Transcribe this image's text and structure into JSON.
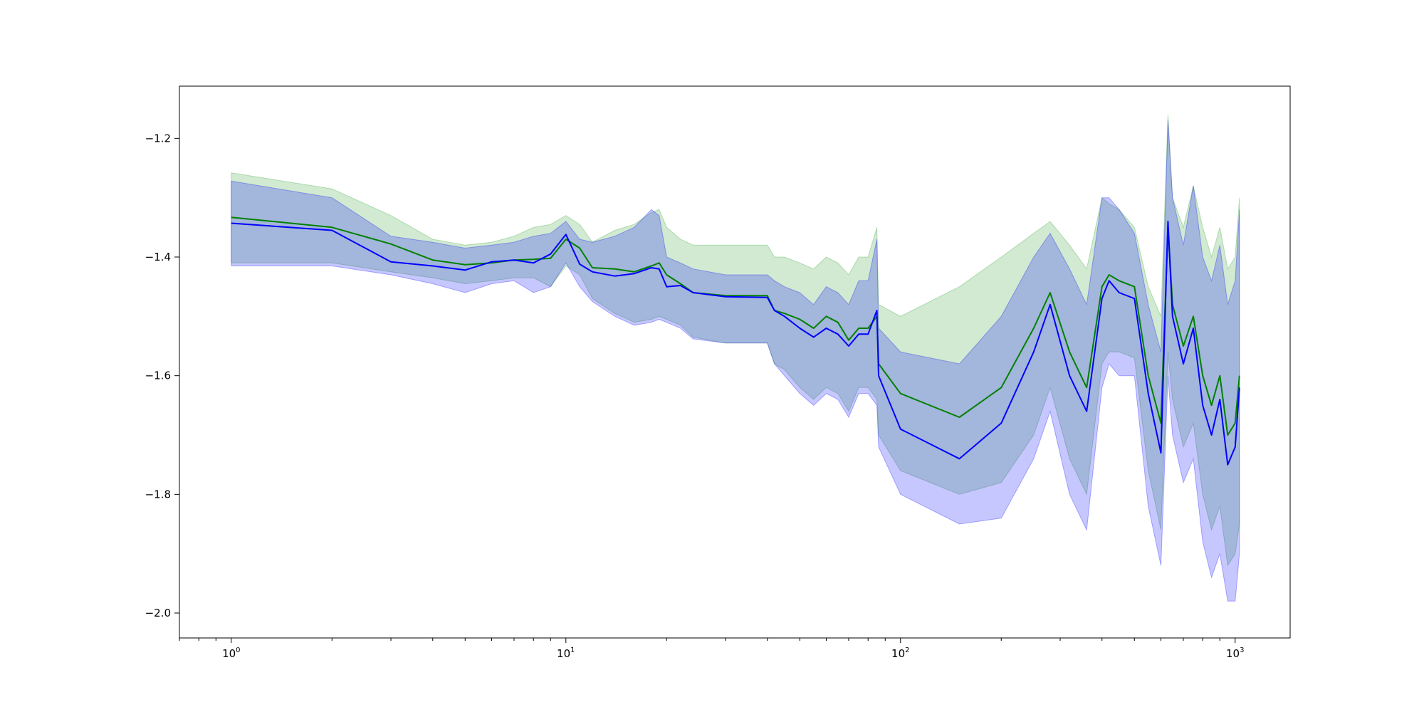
{
  "chart_data": {
    "type": "line",
    "title": "",
    "xlabel": "",
    "ylabel": "",
    "xscale": "log",
    "xlim": [
      0.7,
      1460
    ],
    "ylim": [
      -2.042,
      -1.112
    ],
    "grid": false,
    "legend": "none",
    "x_ticks": [
      {
        "value": 1,
        "base": "10",
        "exp": "0"
      },
      {
        "value": 10,
        "base": "10",
        "exp": "1"
      },
      {
        "value": 100,
        "base": "10",
        "exp": "2"
      },
      {
        "value": 1000,
        "base": "10",
        "exp": "3"
      }
    ],
    "y_ticks": [
      {
        "value": -1.2,
        "label": "−1.2"
      },
      {
        "value": -1.4,
        "label": "−1.4"
      },
      {
        "value": -1.6,
        "label": "−1.6"
      },
      {
        "value": -1.8,
        "label": "−1.8"
      },
      {
        "value": -2.0,
        "label": "−2.0"
      }
    ],
    "series": [
      {
        "color": "#008000",
        "band_color": "#2ca02c",
        "x": [
          1,
          2,
          3,
          4,
          5,
          6,
          7,
          8,
          9,
          10,
          11,
          12,
          14,
          16,
          18,
          19,
          20,
          22,
          24,
          30,
          40,
          42,
          45,
          50,
          55,
          60,
          65,
          70,
          75,
          80,
          85,
          86,
          100,
          150,
          200,
          250,
          280,
          320,
          360,
          400,
          420,
          450,
          500,
          550,
          600,
          630,
          650,
          700,
          750,
          800,
          850,
          900,
          950,
          1000,
          1030
        ],
        "y": [
          -1.333,
          -1.35,
          -1.378,
          -1.405,
          -1.413,
          -1.41,
          -1.405,
          -1.404,
          -1.402,
          -1.37,
          -1.385,
          -1.418,
          -1.42,
          -1.425,
          -1.415,
          -1.41,
          -1.43,
          -1.445,
          -1.46,
          -1.465,
          -1.465,
          -1.49,
          -1.495,
          -1.505,
          -1.52,
          -1.5,
          -1.51,
          -1.54,
          -1.52,
          -1.52,
          -1.5,
          -1.58,
          -1.63,
          -1.67,
          -1.62,
          -1.52,
          -1.46,
          -1.56,
          -1.62,
          -1.45,
          -1.43,
          -1.44,
          -1.45,
          -1.6,
          -1.68,
          -1.35,
          -1.48,
          -1.55,
          -1.5,
          -1.6,
          -1.65,
          -1.6,
          -1.7,
          -1.68,
          -1.6
        ],
        "upper": [
          -1.258,
          -1.285,
          -1.33,
          -1.37,
          -1.38,
          -1.375,
          -1.365,
          -1.35,
          -1.345,
          -1.33,
          -1.345,
          -1.375,
          -1.355,
          -1.345,
          -1.325,
          -1.32,
          -1.35,
          -1.37,
          -1.38,
          -1.38,
          -1.38,
          -1.4,
          -1.4,
          -1.41,
          -1.42,
          -1.4,
          -1.41,
          -1.43,
          -1.4,
          -1.4,
          -1.35,
          -1.48,
          -1.5,
          -1.45,
          -1.4,
          -1.36,
          -1.34,
          -1.38,
          -1.42,
          -1.3,
          -1.31,
          -1.32,
          -1.35,
          -1.45,
          -1.5,
          -1.16,
          -1.3,
          -1.35,
          -1.28,
          -1.35,
          -1.4,
          -1.35,
          -1.42,
          -1.4,
          -1.3
        ],
        "lower": [
          -1.41,
          -1.41,
          -1.425,
          -1.435,
          -1.445,
          -1.44,
          -1.435,
          -1.435,
          -1.45,
          -1.415,
          -1.43,
          -1.47,
          -1.495,
          -1.51,
          -1.505,
          -1.5,
          -1.505,
          -1.515,
          -1.535,
          -1.545,
          -1.545,
          -1.58,
          -1.59,
          -1.62,
          -1.64,
          -1.62,
          -1.63,
          -1.66,
          -1.62,
          -1.62,
          -1.64,
          -1.7,
          -1.76,
          -1.8,
          -1.78,
          -1.7,
          -1.62,
          -1.74,
          -1.8,
          -1.58,
          -1.56,
          -1.56,
          -1.57,
          -1.76,
          -1.86,
          -1.56,
          -1.64,
          -1.72,
          -1.68,
          -1.8,
          -1.86,
          -1.82,
          -1.92,
          -1.9,
          -1.85
        ]
      },
      {
        "color": "#0000ff",
        "band_color": "#0000ff",
        "x": [
          1,
          2,
          3,
          4,
          5,
          6,
          7,
          8,
          9,
          10,
          11,
          12,
          14,
          16,
          18,
          19,
          20,
          22,
          24,
          30,
          40,
          42,
          45,
          50,
          55,
          60,
          65,
          70,
          75,
          80,
          85,
          86,
          100,
          150,
          200,
          250,
          280,
          320,
          360,
          400,
          420,
          450,
          500,
          550,
          600,
          630,
          650,
          700,
          750,
          800,
          850,
          900,
          950,
          1000,
          1030
        ],
        "y": [
          -1.343,
          -1.355,
          -1.408,
          -1.415,
          -1.422,
          -1.408,
          -1.405,
          -1.41,
          -1.395,
          -1.362,
          -1.412,
          -1.425,
          -1.432,
          -1.428,
          -1.418,
          -1.42,
          -1.45,
          -1.448,
          -1.46,
          -1.467,
          -1.468,
          -1.49,
          -1.5,
          -1.52,
          -1.535,
          -1.52,
          -1.53,
          -1.55,
          -1.53,
          -1.53,
          -1.49,
          -1.6,
          -1.69,
          -1.74,
          -1.68,
          -1.56,
          -1.48,
          -1.6,
          -1.66,
          -1.47,
          -1.44,
          -1.46,
          -1.47,
          -1.63,
          -1.73,
          -1.34,
          -1.5,
          -1.58,
          -1.52,
          -1.65,
          -1.7,
          -1.64,
          -1.75,
          -1.72,
          -1.62
        ],
        "upper": [
          -1.272,
          -1.3,
          -1.365,
          -1.375,
          -1.385,
          -1.38,
          -1.375,
          -1.365,
          -1.36,
          -1.34,
          -1.37,
          -1.375,
          -1.365,
          -1.35,
          -1.32,
          -1.33,
          -1.4,
          -1.41,
          -1.42,
          -1.43,
          -1.43,
          -1.44,
          -1.45,
          -1.46,
          -1.48,
          -1.45,
          -1.46,
          -1.48,
          -1.44,
          -1.44,
          -1.37,
          -1.52,
          -1.56,
          -1.58,
          -1.5,
          -1.4,
          -1.36,
          -1.42,
          -1.48,
          -1.3,
          -1.3,
          -1.32,
          -1.36,
          -1.48,
          -1.56,
          -1.17,
          -1.3,
          -1.38,
          -1.28,
          -1.4,
          -1.44,
          -1.38,
          -1.48,
          -1.44,
          -1.32
        ],
        "lower": [
          -1.415,
          -1.415,
          -1.43,
          -1.445,
          -1.46,
          -1.445,
          -1.44,
          -1.46,
          -1.45,
          -1.41,
          -1.45,
          -1.475,
          -1.5,
          -1.515,
          -1.51,
          -1.505,
          -1.51,
          -1.52,
          -1.538,
          -1.545,
          -1.545,
          -1.58,
          -1.6,
          -1.63,
          -1.65,
          -1.63,
          -1.64,
          -1.67,
          -1.63,
          -1.63,
          -1.65,
          -1.72,
          -1.8,
          -1.85,
          -1.84,
          -1.74,
          -1.66,
          -1.8,
          -1.86,
          -1.62,
          -1.58,
          -1.6,
          -1.6,
          -1.82,
          -1.92,
          -1.6,
          -1.7,
          -1.78,
          -1.74,
          -1.88,
          -1.94,
          -1.9,
          -1.98,
          -1.98,
          -1.9
        ]
      }
    ]
  }
}
